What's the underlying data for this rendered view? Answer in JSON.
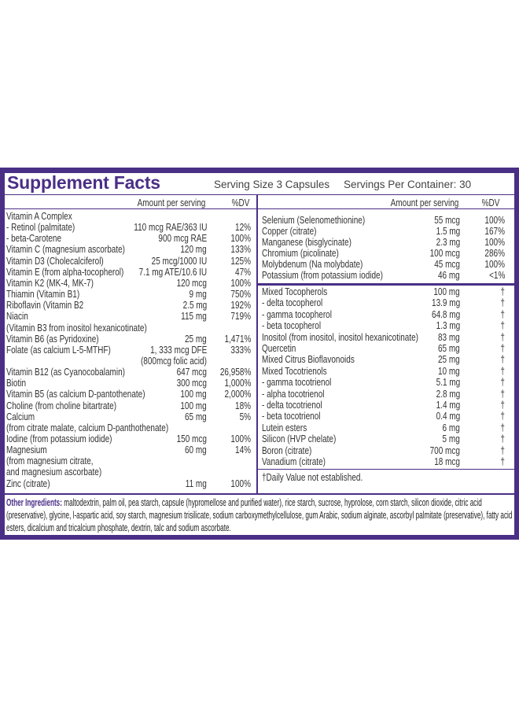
{
  "header": {
    "title": "Supplement Facts",
    "serving_size": "Serving Size 3 Capsules",
    "servings_per_container": "Servings Per Container: 30"
  },
  "left": {
    "columns": [
      "Amount per serving",
      "%DV"
    ],
    "rows": [
      {
        "name": "Vitamin A Complex"
      },
      {
        "name": "- Retinol (palmitate)",
        "amount": "110 mcg RAE/363 IU",
        "dv": "12%"
      },
      {
        "name": "- beta-Carotene",
        "amount": "900 mcg RAE",
        "dv": "100%"
      },
      {
        "name": "Vitamin C (magnesium ascorbate)",
        "amount": "120 mg",
        "dv": "133%"
      },
      {
        "name": "Vitamin D3 (Cholecalciferol)",
        "amount": "25 mcg/1000 IU",
        "dv": "125%"
      },
      {
        "name": "Vitamin E (from alpha-tocopherol)",
        "amount": "7.1 mg ATE/10.6 IU",
        "dv": "47%"
      },
      {
        "name": "Vitamin K2 (MK-4, MK-7)",
        "amount": "120 mcg",
        "dv": "100%"
      },
      {
        "name": "Thiamin (Vitamin B1)",
        "amount": "9 mg",
        "dv": "750%"
      },
      {
        "name": "Riboflavin (Vitamin B2",
        "amount": "2.5 mg",
        "dv": "192%"
      },
      {
        "name": "Niacin",
        "amount": "115 mg",
        "dv": "719%"
      },
      {
        "name": "(Vitamin B3 from inositol hexanicotinate)"
      },
      {
        "name": "Vitamin B6 (as Pyridoxine)",
        "amount": "25 mg",
        "dv": "1,471%"
      },
      {
        "name": "Folate (as calcium L-5-MTHF)",
        "amount": "1, 333 mcg DFE",
        "dv": "333%"
      },
      {
        "amount": "(800mcg folic acid)"
      },
      {
        "name": "Vitamin B12 (as Cyanocobalamin)",
        "amount": "647 mcg",
        "dv": "26,958%"
      },
      {
        "name": "Biotin",
        "amount": "300 mcg",
        "dv": "1,000%"
      },
      {
        "name": "Vitamin B5 (as calcium D-pantothenate)",
        "amount": "100 mg",
        "dv": "2,000%"
      },
      {
        "name": "Choline (from choline bitartrate)",
        "amount": "100 mg",
        "dv": "18%"
      },
      {
        "name": "Calcium",
        "amount": "65 mg",
        "dv": "5%"
      },
      {
        "name": "(from citrate malate, calcium D-panthothenate)"
      },
      {
        "name": "Iodine (from potassium iodide)",
        "amount": "150 mcg",
        "dv": "100%"
      },
      {
        "name": "Magnesium",
        "amount": "60 mg",
        "dv": "14%"
      },
      {
        "name": "(from magnesium citrate,"
      },
      {
        "name": "and magnesium ascorbate)"
      },
      {
        "name": "Zinc (citrate)",
        "amount": "11 mg",
        "dv": "100%"
      }
    ]
  },
  "right": {
    "columns": [
      "Amount per serving",
      "%DV"
    ],
    "rows": [
      {
        "name": "Selenium (Selenomethionine)",
        "amount": "55 mcg",
        "dv": "100%"
      },
      {
        "name": "Copper (citrate)",
        "amount": "1.5 mg",
        "dv": "167%"
      },
      {
        "name": "Manganese (bisglycinate)",
        "amount": "2.3 mg",
        "dv": "100%"
      },
      {
        "name": "Chromium (picolinate)",
        "amount": "100 mcg",
        "dv": "286%"
      },
      {
        "name": "Molybdenum (Na molybdate)",
        "amount": "45 mcg",
        "dv": "100%"
      },
      {
        "name": "Potassium (from potassium iodide)",
        "amount": "46 mg",
        "dv": "<1%"
      }
    ],
    "rows2": [
      {
        "name": "Mixed Tocopherols",
        "amount": "100 mg",
        "dv": "†"
      },
      {
        "name": "- delta tocopherol",
        "amount": "13.9 mg",
        "dv": "†"
      },
      {
        "name": "- gamma tocopherol",
        "amount": "64.8 mg",
        "dv": "†"
      },
      {
        "name": "- beta tocopherol",
        "amount": "1.3 mg",
        "dv": "†"
      },
      {
        "name": "Inositol (from inositol, inositol hexanicotinate)",
        "amount": "83 mg",
        "dv": "†"
      },
      {
        "name": "Quercetin",
        "amount": "65 mg",
        "dv": "†"
      },
      {
        "name": "Mixed Citrus Bioflavonoids",
        "amount": "25 mg",
        "dv": "†"
      },
      {
        "name": "Mixed Tocotrienols",
        "amount": "10 mg",
        "dv": "†"
      },
      {
        "name": "- gamma tocotrienol",
        "amount": "5.1 mg",
        "dv": "†"
      },
      {
        "name": "- alpha tocotrienol",
        "amount": "2.8 mg",
        "dv": "†"
      },
      {
        "name": "- delta tocotrienol",
        "amount": "1.4 mg",
        "dv": "†"
      },
      {
        "name": "- beta tocotrienol",
        "amount": "0.4 mg",
        "dv": "†"
      },
      {
        "name": "Lutein esters",
        "amount": "6 mg",
        "dv": "†"
      },
      {
        "name": "Silicon (HVP chelate)",
        "amount": "5 mg",
        "dv": "†"
      },
      {
        "name": "Boron (citrate)",
        "amount": "700 mcg",
        "dv": "†"
      },
      {
        "name": "Vanadium (citrate)",
        "amount": "18 mcg",
        "dv": "†"
      }
    ],
    "footnote": "†Daily Value not established."
  },
  "other_ingredients": {
    "label": "Other Ingredients:",
    "text": "maltodextrin, palm oil, pea starch, capsule (hypromellose and purified water), rice starch, sucrose, hyprolose, corn starch, silicon dioxide, citric acid (preservative), glycine, l-aspartic acid, soy starch, magnesium trisilicate, sodium carboxymethylcellulose, gum Arabic, sodium alginate, ascorbyl palmitate (preservative), fatty acid esters, dicalcium and tricalcium phosphate, dextrin, talc and sodium ascorbate."
  }
}
